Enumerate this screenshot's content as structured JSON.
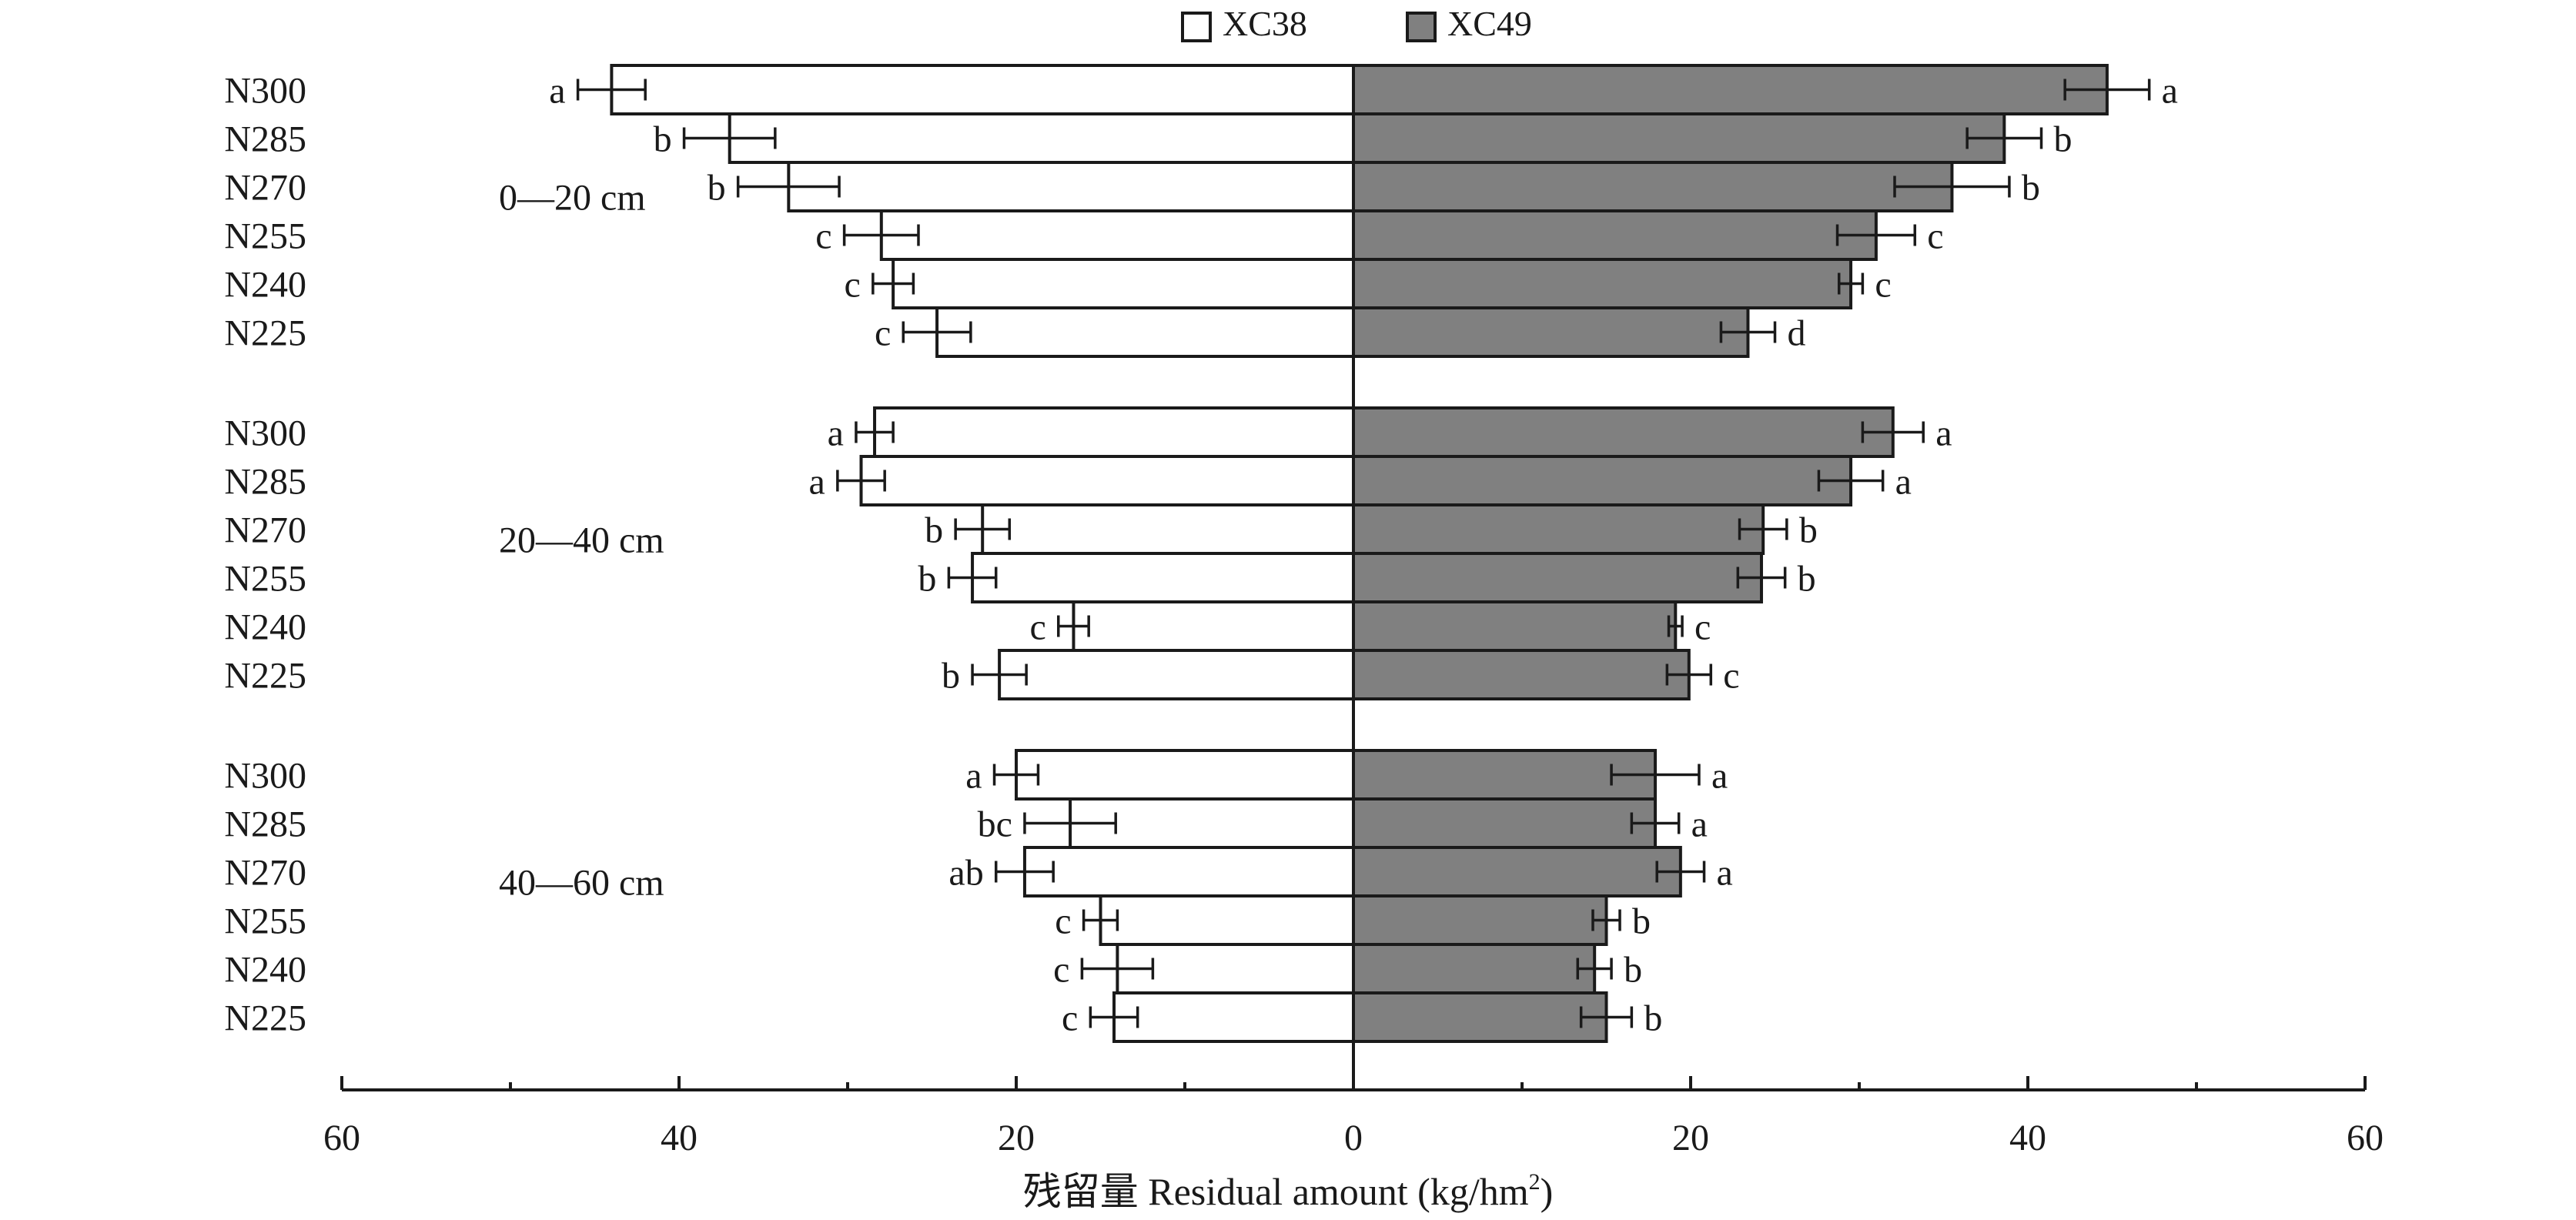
{
  "chart_data": {
    "type": "bar",
    "orientation": "horizontal-back-to-back",
    "title": "",
    "xlabel": "残留量 Residual amount (kg/hm²)",
    "xlabel_parts": {
      "main": "残留量 Residual amount (kg/hm",
      "sup": "2",
      "tail": ")"
    },
    "xlim": [
      0,
      60
    ],
    "xticks": [
      60,
      40,
      20,
      0,
      20,
      40,
      60
    ],
    "legend": {
      "placement": "top-center",
      "entries": [
        {
          "name": "XC38",
          "color": "#ffffff"
        },
        {
          "name": "XC49",
          "color": "#808080"
        }
      ]
    },
    "series_colors": {
      "XC38": "#ffffff",
      "XC49": "#808080"
    },
    "groups": [
      {
        "label": "0—20 cm",
        "categories": [
          "N300",
          "N285",
          "N270",
          "N255",
          "N240",
          "N225"
        ],
        "XC38": {
          "values": [
            44,
            37,
            33.5,
            28,
            27.3,
            24.7
          ],
          "errors": [
            2,
            2.7,
            3,
            2.2,
            1.2,
            2
          ],
          "letters": [
            "a",
            "b",
            "b",
            "c",
            "c",
            "c"
          ]
        },
        "XC49": {
          "values": [
            44.7,
            38.6,
            35.5,
            31,
            29.5,
            23.4
          ],
          "errors": [
            2.5,
            2.2,
            3.4,
            2.3,
            0.7,
            1.6
          ],
          "letters": [
            "a",
            "b",
            "b",
            "c",
            "c",
            "d"
          ]
        }
      },
      {
        "label": "20—40 cm",
        "categories": [
          "N300",
          "N285",
          "N270",
          "N255",
          "N240",
          "N225"
        ],
        "XC38": {
          "values": [
            28.4,
            29.2,
            22,
            22.6,
            16.6,
            21
          ],
          "errors": [
            1.1,
            1.4,
            1.6,
            1.4,
            0.9,
            1.6
          ],
          "letters": [
            "a",
            "a",
            "b",
            "b",
            "c",
            "b"
          ]
        },
        "XC49": {
          "values": [
            32,
            29.5,
            24.3,
            24.2,
            19.1,
            19.9
          ],
          "errors": [
            1.8,
            1.9,
            1.4,
            1.4,
            0.4,
            1.3
          ],
          "letters": [
            "a",
            "a",
            "b",
            "b",
            "c",
            "c"
          ]
        }
      },
      {
        "label": "40—60 cm",
        "categories": [
          "N300",
          "N285",
          "N270",
          "N255",
          "N240",
          "N225"
        ],
        "XC38": {
          "values": [
            20,
            16.8,
            19.5,
            15,
            14,
            14.2
          ],
          "errors": [
            1.3,
            2.7,
            1.7,
            1,
            2.1,
            1.4
          ],
          "letters": [
            "a",
            "bc",
            "ab",
            "c",
            "c",
            "c"
          ]
        },
        "XC49": {
          "values": [
            17.9,
            17.9,
            19.4,
            15,
            14.3,
            15
          ],
          "errors": [
            2.6,
            1.4,
            1.4,
            0.8,
            1,
            1.5
          ],
          "letters": [
            "a",
            "a",
            "a",
            "b",
            "b",
            "b"
          ]
        }
      }
    ]
  }
}
